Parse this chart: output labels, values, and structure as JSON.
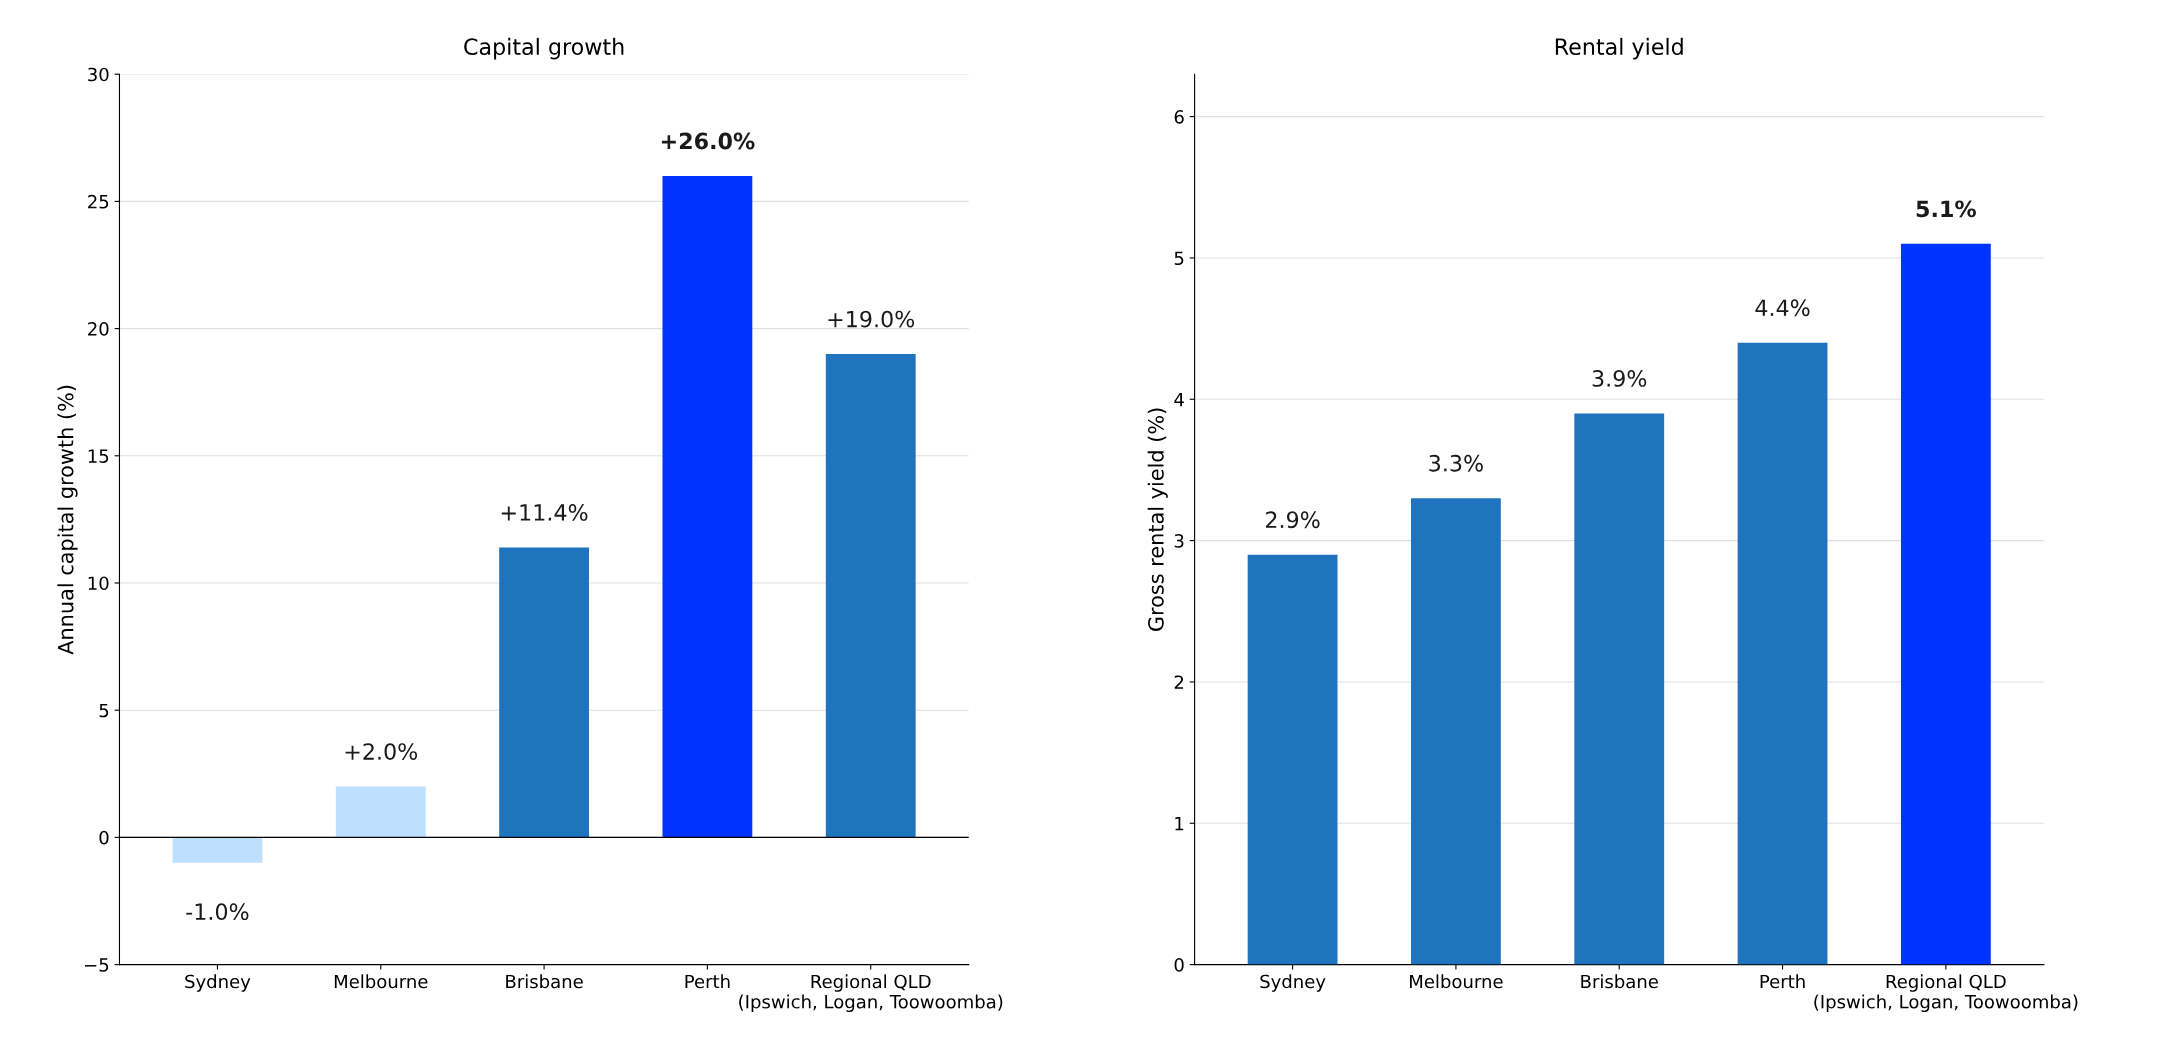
{
  "chart_data": [
    {
      "type": "bar",
      "title": "Capital growth",
      "ylabel": "Annual capital growth (%)",
      "categories": [
        "Sydney",
        "Melbourne",
        "Brisbane",
        "Perth",
        "Regional QLD\n(Ipswich, Logan, Toowoomba)"
      ],
      "values": [
        -1.0,
        2.0,
        11.4,
        26.0,
        19.0
      ],
      "colors": [
        "#bde0fe",
        "#bde0fe",
        "#1f74bd",
        "#0033ff",
        "#1f74bd"
      ],
      "value_labels": [
        "-1.0%",
        "+2.0%",
        "+11.4%",
        "+26.0%",
        "+19.0%"
      ],
      "ylim": [
        -5,
        30
      ],
      "yticks": [
        {
          "value": -5,
          "label": "−5"
        },
        0,
        5,
        10,
        15,
        20,
        25,
        30
      ],
      "grid": "y",
      "ref_lines": [
        {
          "axis": "y",
          "value": 0,
          "color": "#000000"
        }
      ]
    },
    {
      "type": "bar",
      "title": "Rental yield",
      "ylabel": "Gross rental yield (%)",
      "categories": [
        "Sydney",
        "Melbourne",
        "Brisbane",
        "Perth",
        "Regional QLD\n(Ipswich, Logan, Toowoomba)"
      ],
      "values": [
        2.9,
        3.3,
        3.9,
        4.4,
        5.1
      ],
      "colors": [
        "#1f74bd",
        "#1f74bd",
        "#1f74bd",
        "#1f74bd",
        "#0033ff"
      ],
      "value_labels": [
        "2.9%",
        "3.3%",
        "3.9%",
        "4.4%",
        "5.1%"
      ],
      "ylim": [
        0,
        6.3
      ],
      "yticks": [
        0,
        1,
        2,
        3,
        4,
        5,
        6
      ],
      "grid": "y"
    }
  ]
}
